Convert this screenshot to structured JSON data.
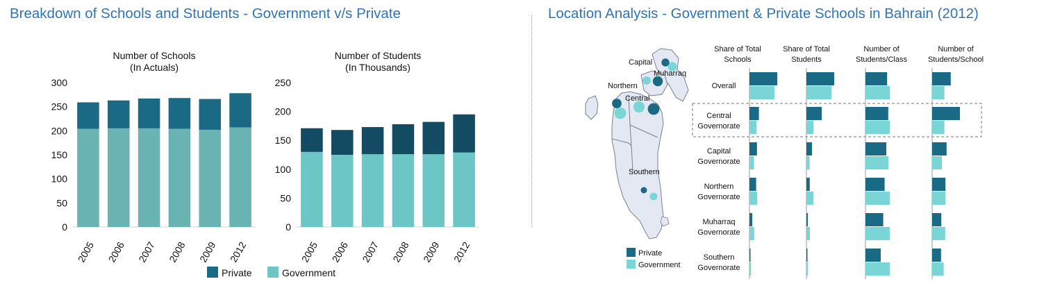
{
  "left_title": "Breakdown of Schools and Students - Government v/s Private",
  "right_title": "Location Analysis - Government & Private Schools in Bahrain (2012)",
  "colors": {
    "private": "#1b6a85",
    "government": "#6cc6c6",
    "government_light": "#79d5d6",
    "private_dark": "#134b63"
  },
  "legend": {
    "private": "Private",
    "government": "Government"
  },
  "chart_data": [
    {
      "type": "bar",
      "stacked": true,
      "title": "Number of Schools",
      "subtitle": "(In Actuals)",
      "categories": [
        "2005",
        "2006",
        "2007",
        "2008",
        "2009",
        "2012"
      ],
      "series": [
        {
          "name": "Government",
          "values": [
            204,
            205,
            205,
            204,
            202,
            207
          ]
        },
        {
          "name": "Private",
          "values": [
            55,
            58,
            62,
            64,
            64,
            71
          ]
        }
      ],
      "ylim": [
        0,
        300
      ],
      "yticks": [
        "0",
        "50",
        "100",
        "150",
        "200",
        "250",
        "300"
      ]
    },
    {
      "type": "bar",
      "stacked": true,
      "title": "Number of Students",
      "subtitle": "(In Thousands)",
      "categories": [
        "2005",
        "2006",
        "2007",
        "2008",
        "2009",
        "2012"
      ],
      "series": [
        {
          "name": "Government",
          "values": [
            130,
            125,
            126,
            126,
            126,
            129
          ]
        },
        {
          "name": "Private",
          "values": [
            41,
            43,
            47,
            52,
            56,
            66
          ]
        }
      ],
      "ylim": [
        0,
        250
      ],
      "yticks": [
        "0",
        "50",
        "100",
        "150",
        "200",
        "250"
      ]
    },
    {
      "type": "bar",
      "horizontal": true,
      "grouped": true,
      "columns": [
        "Share of Total Schools",
        "Share of Total Students",
        "Number of Students/Class",
        "Number of Students/School"
      ],
      "rows": [
        "Overall",
        "Central Governorate",
        "Capital Governorate",
        "Northern Governorate",
        "Muharraq Governorate",
        "Southern Governorate"
      ],
      "highlighted_row": "Central Governorate",
      "series": [
        {
          "name": "Private",
          "values": [
            [
              1.0,
              1.0,
              0.78,
              0.67
            ],
            [
              0.34,
              0.55,
              0.82,
              1.0
            ],
            [
              0.27,
              0.2,
              0.75,
              0.52
            ],
            [
              0.24,
              0.12,
              0.69,
              0.48
            ],
            [
              0.1,
              0.05,
              0.64,
              0.33
            ],
            [
              0.03,
              0.02,
              0.55,
              0.32
            ]
          ]
        },
        {
          "name": "Government",
          "values": [
            [
              1.0,
              1.0,
              0.95,
              0.48
            ],
            [
              0.28,
              0.28,
              0.95,
              0.48
            ],
            [
              0.18,
              0.13,
              0.9,
              0.38
            ],
            [
              0.31,
              0.28,
              0.95,
              0.52
            ],
            [
              0.19,
              0.14,
              0.95,
              0.51
            ],
            [
              0.06,
              0.06,
              0.95,
              0.45
            ]
          ]
        }
      ]
    }
  ],
  "map": {
    "region_labels": [
      "Capital",
      "Muharraq",
      "Northern",
      "Central",
      "Southern"
    ],
    "legend": {
      "private": "Private",
      "government": "Government"
    },
    "markers": [
      {
        "region": "Capital",
        "private_size": 0.45,
        "government_size": 0.6
      },
      {
        "region": "Muharraq",
        "private_size": 0.7,
        "government_size": 0.5
      },
      {
        "region": "Northern",
        "private_size": 0.65,
        "government_size": 0.9
      },
      {
        "region": "Central",
        "private_size": 0.9,
        "government_size": 0.85
      },
      {
        "region": "Southern",
        "private_size": 0.25,
        "government_size": 0.4
      }
    ]
  }
}
